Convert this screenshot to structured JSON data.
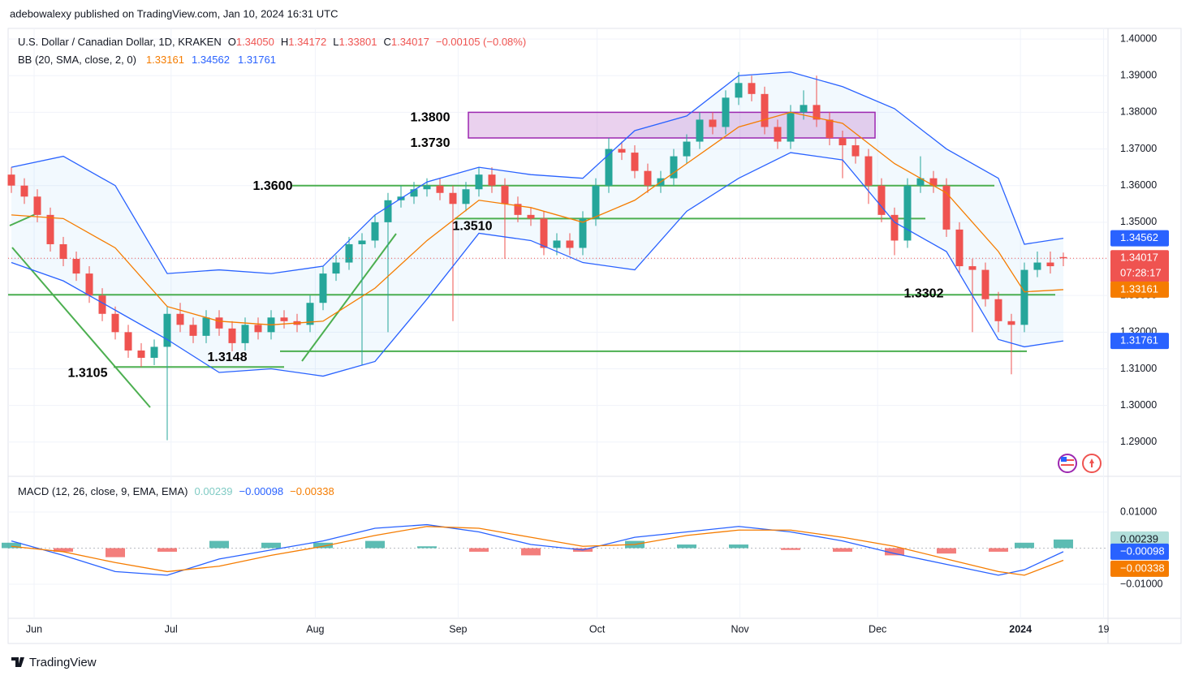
{
  "header": "adebowalexy published on TradingView.com, Jan 10, 2024 16:31 UTC",
  "footer": "TradingView",
  "chart_data": [
    {
      "type": "candlestick",
      "title": "U.S. Dollar / Canadian Dollar, 1D, KRAKEN",
      "legend_ohlc": {
        "names": [
          "O",
          "H",
          "L",
          "C"
        ],
        "values": [
          1.3405,
          1.34172,
          1.33801,
          1.34017
        ],
        "value_labels": [
          "1.34050",
          "1.34172",
          "1.33801",
          "1.34017"
        ]
      },
      "change_label": "−0.00105 (−0.08%)",
      "up_color": "#26a69a",
      "down_color": "#ef5350",
      "candles": [
        [
          1.363,
          1.365,
          1.358,
          1.36
        ],
        [
          1.36,
          1.362,
          1.355,
          1.357
        ],
        [
          1.357,
          1.359,
          1.35,
          1.352
        ],
        [
          1.352,
          1.354,
          1.342,
          1.344
        ],
        [
          1.344,
          1.346,
          1.338,
          1.34
        ],
        [
          1.34,
          1.342,
          1.334,
          1.336
        ],
        [
          1.336,
          1.338,
          1.328,
          1.33
        ],
        [
          1.33,
          1.332,
          1.323,
          1.325
        ],
        [
          1.325,
          1.327,
          1.318,
          1.32
        ],
        [
          1.32,
          1.322,
          1.313,
          1.315
        ],
        [
          1.315,
          1.317,
          1.3105,
          1.313
        ],
        [
          1.313,
          1.318,
          1.311,
          1.316
        ],
        [
          1.316,
          1.327,
          1.2905,
          1.325
        ],
        [
          1.325,
          1.328,
          1.32,
          1.322
        ],
        [
          1.322,
          1.324,
          1.317,
          1.319
        ],
        [
          1.319,
          1.326,
          1.317,
          1.324
        ],
        [
          1.324,
          1.326,
          1.319,
          1.321
        ],
        [
          1.321,
          1.323,
          1.3148,
          1.317
        ],
        [
          1.317,
          1.324,
          1.315,
          1.322
        ],
        [
          1.322,
          1.324,
          1.318,
          1.32
        ],
        [
          1.32,
          1.326,
          1.318,
          1.324
        ],
        [
          1.324,
          1.326,
          1.321,
          1.323
        ],
        [
          1.323,
          1.325,
          1.32,
          1.322
        ],
        [
          1.322,
          1.33,
          1.32,
          1.328
        ],
        [
          1.328,
          1.338,
          1.326,
          1.336
        ],
        [
          1.336,
          1.341,
          1.334,
          1.339
        ],
        [
          1.339,
          1.346,
          1.337,
          1.344
        ],
        [
          1.344,
          1.347,
          1.311,
          1.345
        ],
        [
          1.345,
          1.352,
          1.343,
          1.35
        ],
        [
          1.35,
          1.358,
          1.32,
          1.356
        ],
        [
          1.356,
          1.36,
          1.354,
          1.357
        ],
        [
          1.357,
          1.361,
          1.355,
          1.359
        ],
        [
          1.359,
          1.362,
          1.357,
          1.36
        ],
        [
          1.36,
          1.362,
          1.356,
          1.358
        ],
        [
          1.358,
          1.36,
          1.323,
          1.355
        ],
        [
          1.355,
          1.361,
          1.353,
          1.359
        ],
        [
          1.359,
          1.365,
          1.357,
          1.363
        ],
        [
          1.363,
          1.365,
          1.358,
          1.36
        ],
        [
          1.36,
          1.362,
          1.34,
          1.355
        ],
        [
          1.355,
          1.357,
          1.35,
          1.352
        ],
        [
          1.352,
          1.354,
          1.349,
          1.351
        ],
        [
          1.351,
          1.353,
          1.341,
          1.343
        ],
        [
          1.343,
          1.347,
          1.341,
          1.345
        ],
        [
          1.345,
          1.347,
          1.341,
          1.343
        ],
        [
          1.343,
          1.353,
          1.341,
          1.351
        ],
        [
          1.351,
          1.362,
          1.349,
          1.36
        ],
        [
          1.36,
          1.373,
          1.358,
          1.37
        ],
        [
          1.37,
          1.372,
          1.367,
          1.369
        ],
        [
          1.369,
          1.371,
          1.362,
          1.364
        ],
        [
          1.364,
          1.366,
          1.358,
          1.36
        ],
        [
          1.36,
          1.364,
          1.358,
          1.362
        ],
        [
          1.362,
          1.37,
          1.36,
          1.368
        ],
        [
          1.368,
          1.374,
          1.366,
          1.372
        ],
        [
          1.372,
          1.38,
          1.37,
          1.378
        ],
        [
          1.378,
          1.38,
          1.374,
          1.376
        ],
        [
          1.376,
          1.386,
          1.374,
          1.384
        ],
        [
          1.384,
          1.391,
          1.382,
          1.388
        ],
        [
          1.388,
          1.39,
          1.383,
          1.385
        ],
        [
          1.385,
          1.387,
          1.374,
          1.376
        ],
        [
          1.376,
          1.378,
          1.37,
          1.372
        ],
        [
          1.372,
          1.382,
          1.37,
          1.38
        ],
        [
          1.38,
          1.386,
          1.378,
          1.382
        ],
        [
          1.382,
          1.39,
          1.376,
          1.378
        ],
        [
          1.378,
          1.38,
          1.371,
          1.373
        ],
        [
          1.373,
          1.375,
          1.362,
          1.371
        ],
        [
          1.371,
          1.373,
          1.366,
          1.368
        ],
        [
          1.368,
          1.37,
          1.355,
          1.36
        ],
        [
          1.36,
          1.362,
          1.35,
          1.352
        ],
        [
          1.352,
          1.354,
          1.341,
          1.345
        ],
        [
          1.345,
          1.362,
          1.343,
          1.36
        ],
        [
          1.36,
          1.368,
          1.358,
          1.362
        ],
        [
          1.362,
          1.364,
          1.358,
          1.36
        ],
        [
          1.36,
          1.362,
          1.346,
          1.348
        ],
        [
          1.348,
          1.35,
          1.336,
          1.338
        ],
        [
          1.338,
          1.34,
          1.32,
          1.337
        ],
        [
          1.337,
          1.339,
          1.327,
          1.329
        ],
        [
          1.329,
          1.331,
          1.32,
          1.323
        ],
        [
          1.323,
          1.325,
          1.3085,
          1.322
        ],
        [
          1.322,
          1.339,
          1.32,
          1.337
        ],
        [
          1.337,
          1.342,
          1.335,
          1.339
        ],
        [
          1.339,
          1.342,
          1.336,
          1.338
        ],
        [
          1.3405,
          1.34172,
          1.33801,
          1.34017
        ]
      ],
      "bands": {
        "name": "BB (20, SMA, close, 2, 0)",
        "x": [
          0,
          4,
          8,
          12,
          16,
          20,
          24,
          28,
          32,
          36,
          40,
          44,
          48,
          52,
          56,
          60,
          64,
          68,
          72,
          76,
          78,
          81
        ],
        "series": [
          {
            "color": "#f57c00",
            "legend_label": "1.33161",
            "values": [
              1.352,
              1.351,
              1.343,
              1.327,
              1.323,
              1.322,
              1.323,
              1.332,
              1.345,
              1.356,
              1.354,
              1.35,
              1.356,
              1.366,
              1.376,
              1.38,
              1.377,
              1.366,
              1.358,
              1.342,
              1.331,
              1.33161
            ]
          },
          {
            "color": "#2962ff",
            "legend_label": "1.34562",
            "values": [
              1.365,
              1.368,
              1.36,
              1.336,
              1.337,
              1.336,
              1.338,
              1.352,
              1.361,
              1.365,
              1.363,
              1.362,
              1.375,
              1.379,
              1.39,
              1.391,
              1.387,
              1.381,
              1.37,
              1.362,
              1.344,
              1.34562
            ]
          },
          {
            "color": "#2962ff",
            "legend_label": "1.31761",
            "values": [
              1.339,
              1.334,
              1.326,
              1.318,
              1.309,
              1.31,
              1.308,
              1.312,
              1.329,
              1.347,
              1.345,
              1.339,
              1.337,
              1.353,
              1.362,
              1.369,
              1.367,
              1.35,
              1.342,
              1.318,
              1.316,
              1.31761
            ]
          }
        ]
      },
      "xlim": [
        -0.25,
        84.44
      ],
      "xticks": [
        {
          "value": 1.75,
          "label": "Jun"
        },
        {
          "value": 12.3,
          "label": "Jul"
        },
        {
          "value": 23.4,
          "label": "Aug"
        },
        {
          "value": 34.4,
          "label": "Sep"
        },
        {
          "value": 45.1,
          "label": "Oct"
        },
        {
          "value": 56.1,
          "label": "Nov"
        },
        {
          "value": 66.7,
          "label": "Dec"
        },
        {
          "value": 77.7,
          "label": "2024"
        },
        {
          "value": 84.1,
          "label": "19"
        }
      ],
      "ylim": [
        1.2811,
        1.4029
      ],
      "yticks": [
        {
          "value": 1.4,
          "label": "1.40000"
        },
        {
          "value": 1.39,
          "label": "1.39000"
        },
        {
          "value": 1.38,
          "label": "1.38000"
        },
        {
          "value": 1.37,
          "label": "1.37000"
        },
        {
          "value": 1.36,
          "label": "1.36000"
        },
        {
          "value": 1.35,
          "label": "1.35000"
        },
        {
          "value": 1.34,
          "label": "1.34000"
        },
        {
          "value": 1.33,
          "label": "1.33000"
        },
        {
          "value": 1.32,
          "label": "1.32000"
        },
        {
          "value": 1.31,
          "label": "1.31000"
        },
        {
          "value": 1.3,
          "label": "1.30000"
        },
        {
          "value": 1.29,
          "label": "1.29000"
        }
      ],
      "grid": true,
      "badges": [
        {
          "value": 1.34562,
          "label": "1.34562",
          "color": "#2962ff"
        },
        {
          "value": 1.34017,
          "label": "1.34017",
          "color": "#ef5350",
          "timer": "07:28:17"
        },
        {
          "value": 1.33161,
          "label": "1.33161",
          "color": "#f57c00"
        },
        {
          "value": 1.31761,
          "label": "1.31761",
          "color": "#2962ff"
        }
      ],
      "levels": [
        {
          "value": 1.38,
          "label": "1.3800"
        },
        {
          "value": 1.373,
          "label": "1.3730"
        },
        {
          "value": 1.36,
          "label": "1.3600"
        },
        {
          "value": 1.351,
          "label": "1.3510"
        },
        {
          "value": 1.3302,
          "label": "1.3302"
        },
        {
          "value": 1.3148,
          "label": "1.3148"
        },
        {
          "value": 1.3105,
          "label": "1.3105"
        }
      ]
    },
    {
      "type": "macd",
      "title": "MACD (12, 26, close, 9, EMA, EMA)",
      "x": [
        0,
        4,
        8,
        12,
        16,
        20,
        24,
        28,
        32,
        36,
        40,
        44,
        48,
        52,
        56,
        60,
        64,
        68,
        72,
        76,
        78,
        81
      ],
      "histogram": {
        "legend_label": "0.00239",
        "values": [
          0.0015,
          -0.001,
          -0.0025,
          -0.001,
          0.002,
          0.0015,
          0.0015,
          0.002,
          0.0005,
          -0.001,
          -0.002,
          -0.001,
          0.002,
          0.001,
          0.001,
          -0.0005,
          -0.001,
          -0.002,
          -0.0015,
          -0.001,
          0.0015,
          0.00239
        ],
        "up_color": "#26a69a",
        "down_color": "#ef5350"
      },
      "series": [
        {
          "color": "#2962ff",
          "legend_label": "−0.00098",
          "values": [
            0.002,
            -0.002,
            -0.0065,
            -0.0075,
            -0.003,
            -0.0005,
            0.002,
            0.0055,
            0.0065,
            0.0045,
            0.001,
            -0.0005,
            0.003,
            0.0045,
            0.006,
            0.0045,
            0.002,
            -0.0015,
            -0.0045,
            -0.0075,
            -0.006,
            -0.00098
          ]
        },
        {
          "color": "#f57c00",
          "legend_label": "−0.00338",
          "values": [
            0.0005,
            -0.001,
            -0.004,
            -0.0065,
            -0.005,
            -0.002,
            0.0005,
            0.0035,
            0.006,
            0.0055,
            0.003,
            0.0005,
            0.001,
            0.0035,
            0.005,
            0.005,
            0.003,
            0.0005,
            -0.003,
            -0.0065,
            -0.0075,
            -0.00338
          ]
        }
      ],
      "ylim": [
        -0.01899,
        0.01921
      ],
      "yticks": [
        {
          "value": 0.01,
          "label": "0.01000"
        },
        {
          "value": -0.01,
          "label": "−0.01000"
        }
      ],
      "badges": [
        {
          "value": 0.00239,
          "label": "0.00239",
          "color": "#b2dfdb",
          "text_color": "#131722"
        },
        {
          "value": -0.00098,
          "label": "−0.00098",
          "color": "#2962ff"
        },
        {
          "value": -0.00338,
          "label": "−0.00338",
          "color": "#f57c00"
        }
      ]
    }
  ]
}
